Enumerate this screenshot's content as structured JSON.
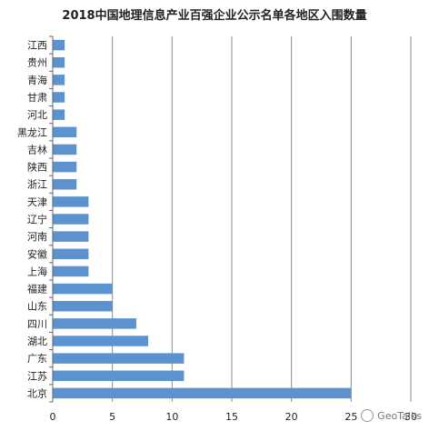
{
  "chart_data": {
    "type": "bar",
    "orientation": "horizontal",
    "title": "2018中国地理信息产业百强企业公示名单各地区入围数量",
    "categories": [
      "江西",
      "贵州",
      "青海",
      "甘肃",
      "河北",
      "黑龙江",
      "吉林",
      "陕西",
      "浙江",
      "天津",
      "辽宁",
      "河南",
      "安徽",
      "上海",
      "福建",
      "山东",
      "四川",
      "湖北",
      "广东",
      "江苏",
      "北京"
    ],
    "values": [
      1,
      1,
      1,
      1,
      1,
      2,
      2,
      2,
      2,
      3,
      3,
      3,
      3,
      3,
      5,
      5,
      7,
      8,
      11,
      11,
      25
    ],
    "xlim": [
      0,
      30
    ],
    "xticks": [
      0,
      5,
      10,
      15,
      20,
      25,
      30
    ],
    "grid": "vertical",
    "bar_color": "#5b92cf"
  },
  "watermark": {
    "text": "GeoTalks",
    "icon": "wechat-icon"
  }
}
